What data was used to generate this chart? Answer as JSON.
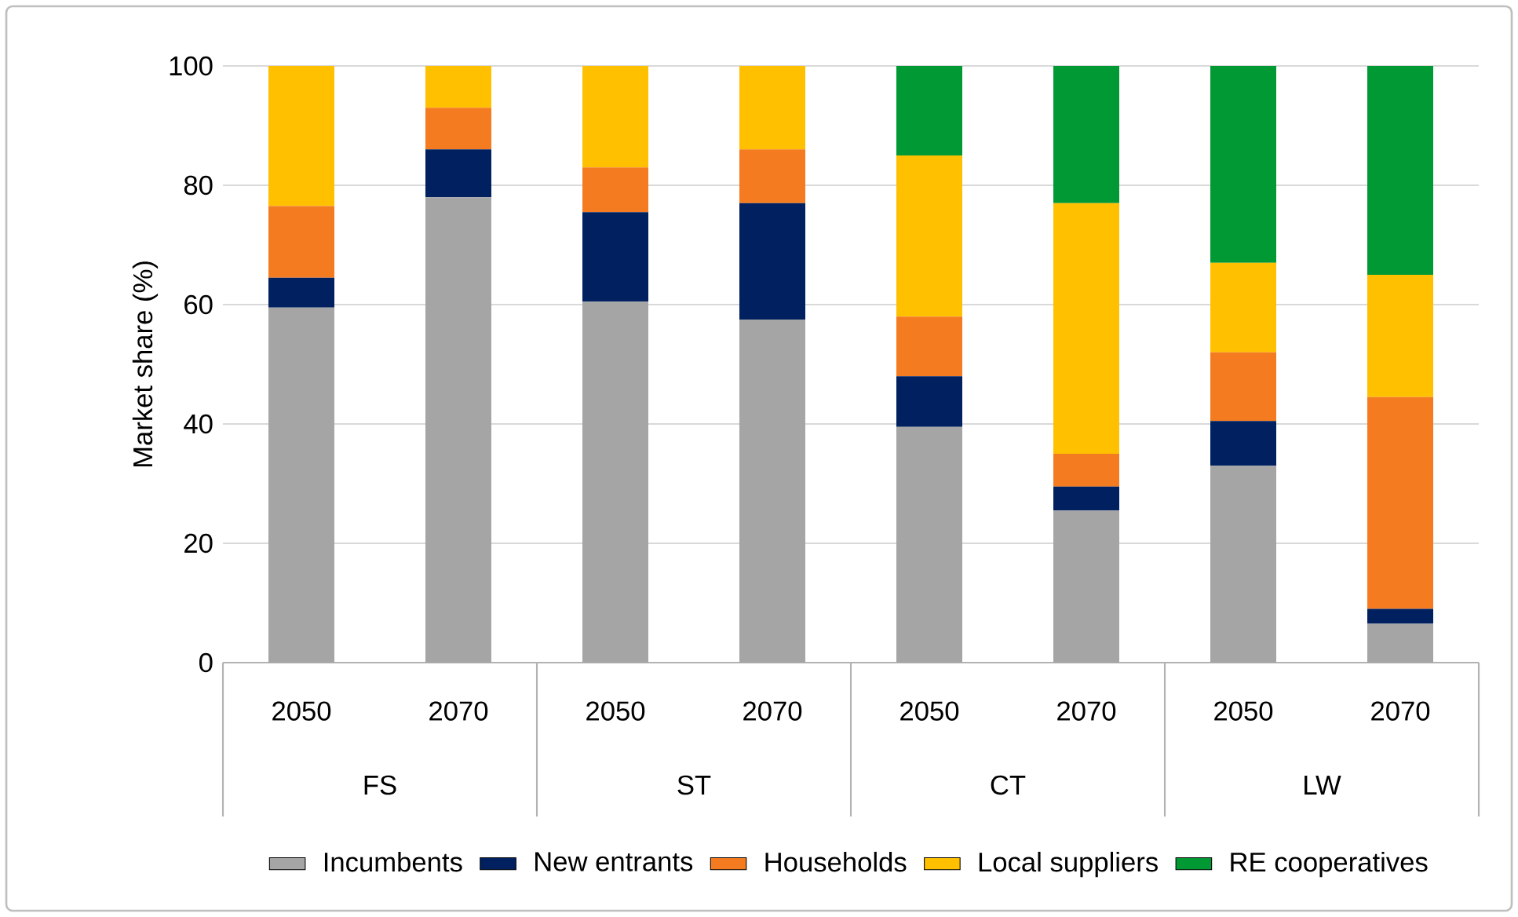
{
  "chart_data": {
    "type": "bar",
    "stacked": true,
    "ylabel": "Market share (%)",
    "categories": [
      "2050",
      "2070",
      "2050",
      "2070",
      "2050",
      "2070",
      "2050",
      "2070"
    ],
    "annotations": [
      "FS",
      "ST",
      "CT",
      "LW"
    ],
    "series": [
      {
        "name": "Incumbents",
        "color": "#a5a5a5",
        "values": [
          59.5,
          78,
          60.5,
          57.5,
          39.5,
          25.5,
          33,
          6.5
        ]
      },
      {
        "name": "New entrants",
        "color": "#002060",
        "values": [
          5,
          8,
          15,
          19.5,
          8.5,
          4,
          7.5,
          2.5
        ]
      },
      {
        "name": "Households",
        "color": "#f47b20",
        "values": [
          12,
          7,
          7.5,
          9,
          10,
          5.5,
          11.5,
          35.5
        ]
      },
      {
        "name": "Local suppliers",
        "color": "#ffc000",
        "values": [
          23.5,
          7,
          17,
          14,
          27,
          42,
          15,
          20.5
        ]
      },
      {
        "name": "RE cooperatives",
        "color": "#009933",
        "values": [
          null,
          null,
          null,
          null,
          15,
          23,
          33,
          35
        ]
      }
    ],
    "ylim": [
      0,
      100
    ],
    "yticks": [
      0,
      20,
      40,
      60,
      80,
      100
    ],
    "grid": "y",
    "legend": "bottom"
  }
}
